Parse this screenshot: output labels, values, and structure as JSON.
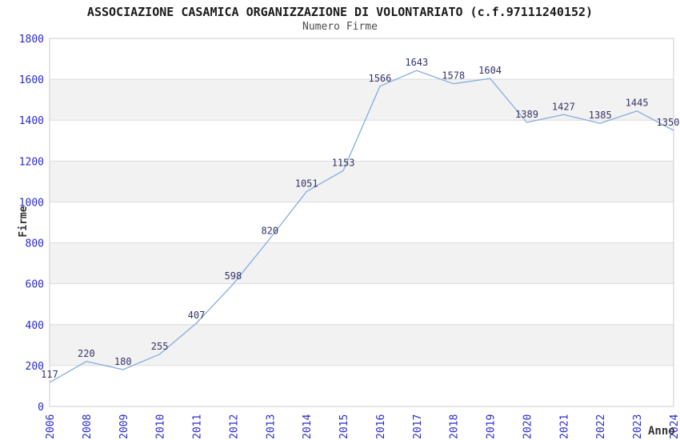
{
  "chart_data": {
    "type": "line",
    "title": "ASSOCIAZIONE CASAMICA ORGANIZZAZIONE DI VOLONTARIATO (c.f.97111240152)",
    "subtitle": "Numero Firme",
    "xlabel": "Anno",
    "ylabel": "Firme",
    "categories": [
      "2006",
      "2008",
      "2009",
      "2010",
      "2011",
      "2012",
      "2013",
      "2014",
      "2015",
      "2016",
      "2017",
      "2018",
      "2019",
      "2020",
      "2021",
      "2022",
      "2023",
      "2024"
    ],
    "values": [
      117,
      220,
      180,
      255,
      407,
      598,
      820,
      1051,
      1153,
      1566,
      1643,
      1578,
      1604,
      1389,
      1427,
      1385,
      1445,
      1350
    ],
    "ylim": [
      0,
      1800
    ],
    "ytick_step": 200,
    "grid": true,
    "legend": "none",
    "band_style": "alternating-horizontal",
    "colors": {
      "line": "#85ace0",
      "tick_label": "#2a2acc",
      "point_label": "#333366",
      "band_fill": "#f2f2f2",
      "gridline": "#dcdcdc",
      "plot_border": "#cccccc",
      "title": "#1a1a1a",
      "subtitle": "#4d4d4d",
      "axis_label": "#333333",
      "background": "#ffffff"
    }
  }
}
